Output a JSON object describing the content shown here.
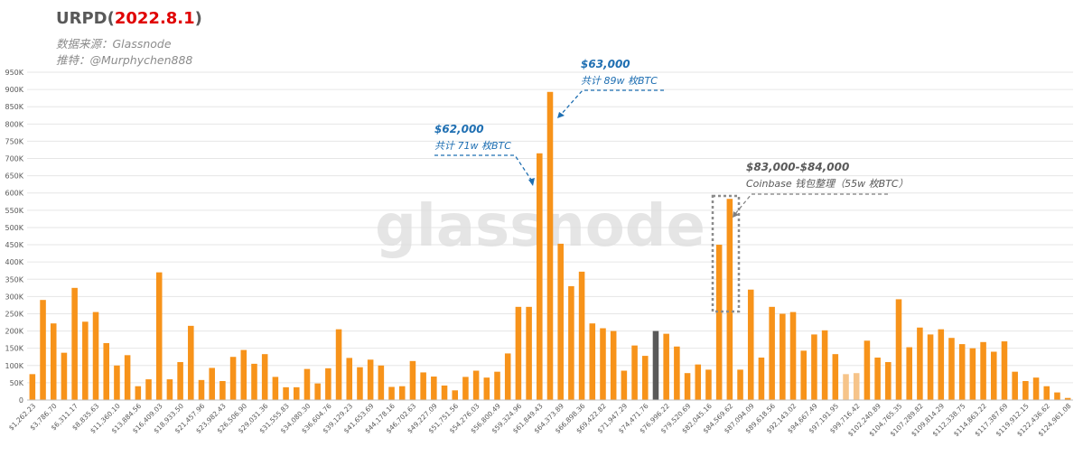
{
  "header": {
    "title_main": "URPD(",
    "title_date": "2022.8.1",
    "title_close": ")",
    "source": "数据来源：Glassnode",
    "twitter": "推特：@Murphychen888"
  },
  "watermark": "glassnode",
  "annotations": {
    "a62k_price": "$62,000",
    "a62k_text": "共计 71w 枚BTC",
    "a63k_price": "$63,000",
    "a63k_text": "共计 89w 枚BTC",
    "a83k_price": "$83,000-$84,000",
    "a83k_text": "Coinbase 钱包整理（55w 枚BTC）"
  },
  "colors": {
    "bar": "#f7931a",
    "bar_highlight": "#595959",
    "bar_faded": "#f6c48a",
    "annotation_blue": "#1f6fb2",
    "grid": "#e6e6e6"
  },
  "chart_data": {
    "type": "bar",
    "ylim": [
      0,
      950000
    ],
    "yticks": [
      "0",
      "50K",
      "100K",
      "150K",
      "200K",
      "250K",
      "300K",
      "350K",
      "400K",
      "450K",
      "500K",
      "550K",
      "600K",
      "650K",
      "700K",
      "750K",
      "800K",
      "850K",
      "900K",
      "950K"
    ],
    "xtick_labels": [
      "$1,262.23",
      "$3,786.70",
      "$6,311.17",
      "$8,835.63",
      "$11,360.10",
      "$13,884.56",
      "$16,409.03",
      "$18,933.50",
      "$21,457.96",
      "$23,982.43",
      "$26,506.90",
      "$29,031.36",
      "$31,555.83",
      "$34,080.30",
      "$36,604.76",
      "$39,129.23",
      "$41,653.69",
      "$44,178.16",
      "$46,702.63",
      "$49,227.09",
      "$51,751.56",
      "$54,276.03",
      "$56,800.49",
      "$59,324.96",
      "$61,849.43",
      "$64,373.89",
      "$66,898.36",
      "$69,422.82",
      "$71,947.29",
      "$74,471.76",
      "$76,996.22",
      "$79,520.69",
      "$82,045.16",
      "$84,569.62",
      "$87,094.09",
      "$89,618.56",
      "$92,143.02",
      "$94,667.49",
      "$97,191.95",
      "$99,716.42",
      "$102,240.89",
      "$104,765.35",
      "$107,289.82",
      "$109,814.29",
      "$112,338.75",
      "$114,863.22",
      "$117,387.69",
      "$119,912.15",
      "$122,436.62",
      "$124,961.08"
    ],
    "highlight_index": 59,
    "faded_indices": [
      77,
      78
    ],
    "values": [
      75000,
      290000,
      222000,
      137000,
      325000,
      227000,
      255000,
      165000,
      100000,
      130000,
      40000,
      60000,
      370000,
      60000,
      110000,
      215000,
      58000,
      93000,
      55000,
      125000,
      145000,
      105000,
      133000,
      67000,
      37000,
      37000,
      90000,
      48000,
      92000,
      205000,
      122000,
      95000,
      117000,
      100000,
      38000,
      40000,
      113000,
      80000,
      68000,
      42000,
      28000,
      67000,
      85000,
      65000,
      82000,
      135000,
      270000,
      270000,
      715000,
      893000,
      453000,
      330000,
      372000,
      222000,
      208000,
      200000,
      85000,
      158000,
      128000,
      200000,
      192000,
      155000,
      78000,
      103000,
      88000,
      450000,
      583000,
      88000,
      320000,
      123000,
      270000,
      250000,
      255000,
      143000,
      190000,
      202000,
      133000,
      75000,
      78000,
      172000,
      123000,
      110000,
      292000,
      153000,
      210000,
      190000,
      205000,
      180000,
      162000,
      150000,
      168000,
      140000,
      170000,
      82000,
      55000,
      65000,
      40000,
      22000,
      6000
    ]
  }
}
